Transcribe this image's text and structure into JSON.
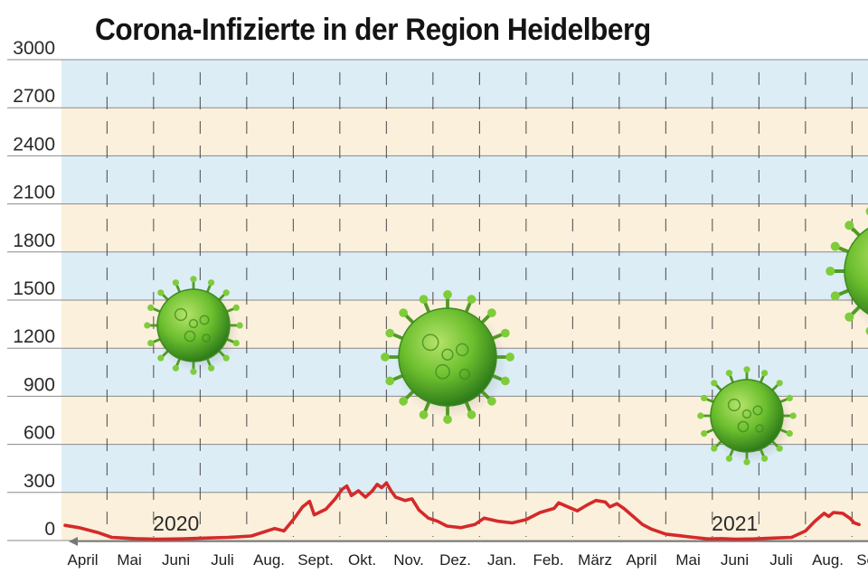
{
  "chart_data": {
    "type": "line",
    "title": "Corona-Infizierte in der Region Heidelberg",
    "xlabel": "",
    "ylabel": "",
    "ylim": [
      0,
      3000
    ],
    "yticks": [
      0,
      300,
      600,
      900,
      1200,
      1500,
      1800,
      2100,
      2400,
      2700,
      3000
    ],
    "grid": true,
    "legend": "none",
    "colors": {
      "line": "#d42a2a",
      "band_cream": "#fbf0dc",
      "band_blue": "#dcedf6",
      "virus": "#6cbf2e"
    },
    "months": [
      "April",
      "Mai",
      "Juni",
      "Juli",
      "Aug.",
      "Sept.",
      "Okt.",
      "Nov.",
      "Dez.",
      "Jan.",
      "Feb.",
      "März",
      "April",
      "Mai",
      "Juni",
      "Juli",
      "Aug.",
      "Sept."
    ],
    "year_labels": [
      {
        "label": "2020",
        "month_index": 2.5
      },
      {
        "label": "2021",
        "month_index": 14.5
      }
    ],
    "series": [
      {
        "values": [
          {
            "x": 0,
            "y": 95
          },
          {
            "x": 0.3,
            "y": 80
          },
          {
            "x": 0.7,
            "y": 50
          },
          {
            "x": 1.0,
            "y": 20
          },
          {
            "x": 1.5,
            "y": 12
          },
          {
            "x": 2.0,
            "y": 8
          },
          {
            "x": 2.5,
            "y": 10
          },
          {
            "x": 3.0,
            "y": 15
          },
          {
            "x": 3.5,
            "y": 20
          },
          {
            "x": 4.0,
            "y": 28
          },
          {
            "x": 4.5,
            "y": 75
          },
          {
            "x": 4.7,
            "y": 60
          },
          {
            "x": 4.9,
            "y": 130
          },
          {
            "x": 5.1,
            "y": 210
          },
          {
            "x": 5.25,
            "y": 245
          },
          {
            "x": 5.35,
            "y": 160
          },
          {
            "x": 5.6,
            "y": 195
          },
          {
            "x": 5.8,
            "y": 260
          },
          {
            "x": 5.95,
            "y": 320
          },
          {
            "x": 6.05,
            "y": 340
          },
          {
            "x": 6.15,
            "y": 280
          },
          {
            "x": 6.3,
            "y": 310
          },
          {
            "x": 6.45,
            "y": 270
          },
          {
            "x": 6.6,
            "y": 310
          },
          {
            "x": 6.7,
            "y": 350
          },
          {
            "x": 6.8,
            "y": 330
          },
          {
            "x": 6.9,
            "y": 360
          },
          {
            "x": 7.0,
            "y": 310
          },
          {
            "x": 7.1,
            "y": 270
          },
          {
            "x": 7.3,
            "y": 250
          },
          {
            "x": 7.45,
            "y": 260
          },
          {
            "x": 7.6,
            "y": 190
          },
          {
            "x": 7.8,
            "y": 140
          },
          {
            "x": 8.0,
            "y": 120
          },
          {
            "x": 8.2,
            "y": 90
          },
          {
            "x": 8.5,
            "y": 80
          },
          {
            "x": 8.8,
            "y": 100
          },
          {
            "x": 9.0,
            "y": 140
          },
          {
            "x": 9.3,
            "y": 120
          },
          {
            "x": 9.6,
            "y": 110
          },
          {
            "x": 9.9,
            "y": 130
          },
          {
            "x": 10.2,
            "y": 175
          },
          {
            "x": 10.5,
            "y": 200
          },
          {
            "x": 10.6,
            "y": 235
          },
          {
            "x": 10.8,
            "y": 210
          },
          {
            "x": 11.0,
            "y": 185
          },
          {
            "x": 11.2,
            "y": 220
          },
          {
            "x": 11.4,
            "y": 250
          },
          {
            "x": 11.6,
            "y": 240
          },
          {
            "x": 11.7,
            "y": 210
          },
          {
            "x": 11.85,
            "y": 230
          },
          {
            "x": 12.0,
            "y": 200
          },
          {
            "x": 12.2,
            "y": 150
          },
          {
            "x": 12.4,
            "y": 100
          },
          {
            "x": 12.6,
            "y": 70
          },
          {
            "x": 12.9,
            "y": 40
          },
          {
            "x": 13.2,
            "y": 30
          },
          {
            "x": 13.5,
            "y": 20
          },
          {
            "x": 13.8,
            "y": 10
          },
          {
            "x": 14.1,
            "y": 12
          },
          {
            "x": 14.4,
            "y": 8
          },
          {
            "x": 14.8,
            "y": 10
          },
          {
            "x": 15.2,
            "y": 15
          },
          {
            "x": 15.6,
            "y": 20
          },
          {
            "x": 15.9,
            "y": 60
          },
          {
            "x": 16.1,
            "y": 120
          },
          {
            "x": 16.3,
            "y": 170
          },
          {
            "x": 16.4,
            "y": 150
          },
          {
            "x": 16.5,
            "y": 175
          },
          {
            "x": 16.7,
            "y": 170
          },
          {
            "x": 16.85,
            "y": 140
          },
          {
            "x": 16.95,
            "y": 110
          },
          {
            "x": 17.05,
            "y": 100
          }
        ]
      }
    ]
  }
}
